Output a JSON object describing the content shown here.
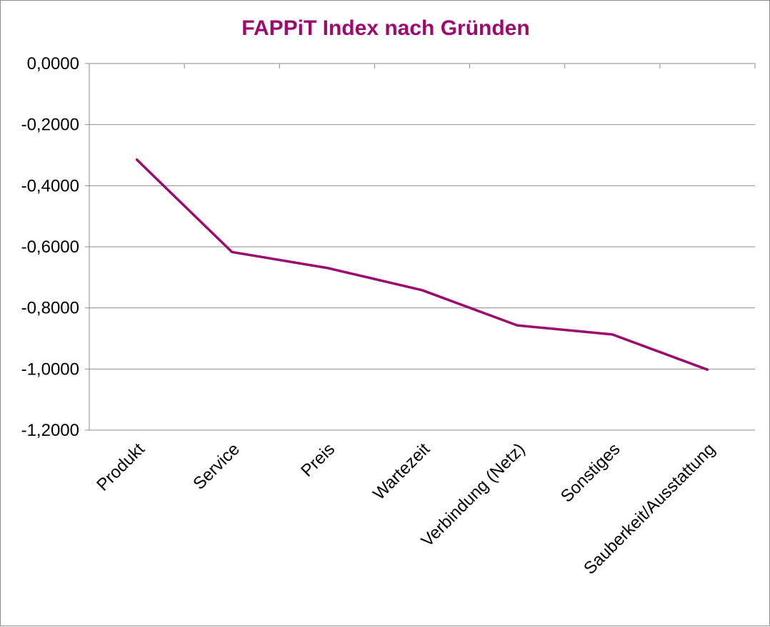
{
  "chart_data": {
    "type": "line",
    "title": "FAPPiT Index nach Gründen",
    "xlabel": "",
    "ylabel": "",
    "categories": [
      "Produkt",
      "Service",
      "Preis",
      "Wartezeit",
      "Verbindung (Netz)",
      "Sonstiges",
      "Sauberkeit/Ausstattung"
    ],
    "series": [
      {
        "values": [
          -0.315,
          -0.617,
          -0.669,
          -0.742,
          -0.857,
          -0.887,
          -1.002
        ]
      }
    ],
    "ylim": [
      -1.2,
      0
    ],
    "yticks": [
      0,
      -0.2,
      -0.4,
      -0.6,
      -0.8,
      -1.0,
      -1.2
    ],
    "ytick_labels": [
      "0,0000",
      "-0,2000",
      "-0,4000",
      "-0,6000",
      "-0,8000",
      "-1,0000",
      "-1,2000"
    ],
    "grid": true,
    "legend": "none",
    "colors": {
      "title": "#9b0b6e",
      "line": "#9b0b6e",
      "grid": "#8c8c8c",
      "axis": "#8c8c8c",
      "text": "#000000"
    }
  }
}
